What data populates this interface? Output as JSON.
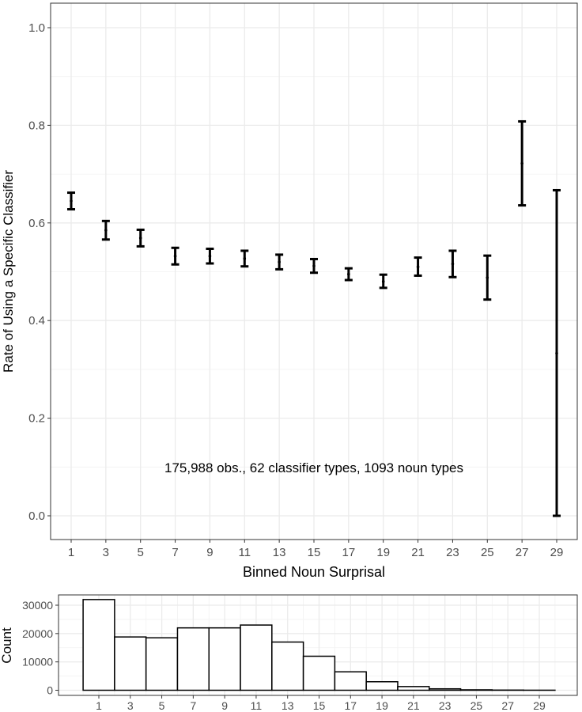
{
  "chart_data": [
    {
      "type": "scatter",
      "subtype": "errorbar",
      "xlabel": "Binned Noun Surprisal",
      "ylabel": "Rate of Using a Specific Classifier",
      "ylim": [
        0.0,
        1.0
      ],
      "xlim": [
        1,
        29
      ],
      "x_ticks": [
        1,
        3,
        5,
        7,
        9,
        11,
        13,
        15,
        17,
        19,
        21,
        23,
        25,
        27,
        29
      ],
      "y_ticks": [
        0.0,
        0.2,
        0.4,
        0.6,
        0.8,
        1.0
      ],
      "grid": true,
      "annotation": "175,988 obs., 62 classifier types, 1093 noun types",
      "points": [
        {
          "x": 1,
          "y": 0.645,
          "low": 0.628,
          "high": 0.662
        },
        {
          "x": 3,
          "y": 0.585,
          "low": 0.566,
          "high": 0.604
        },
        {
          "x": 5,
          "y": 0.569,
          "low": 0.552,
          "high": 0.586
        },
        {
          "x": 7,
          "y": 0.532,
          "low": 0.515,
          "high": 0.549
        },
        {
          "x": 9,
          "y": 0.532,
          "low": 0.517,
          "high": 0.547
        },
        {
          "x": 11,
          "y": 0.527,
          "low": 0.511,
          "high": 0.543
        },
        {
          "x": 13,
          "y": 0.52,
          "low": 0.505,
          "high": 0.535
        },
        {
          "x": 15,
          "y": 0.512,
          "low": 0.498,
          "high": 0.526
        },
        {
          "x": 17,
          "y": 0.495,
          "low": 0.483,
          "high": 0.507
        },
        {
          "x": 19,
          "y": 0.48,
          "low": 0.467,
          "high": 0.494
        },
        {
          "x": 21,
          "y": 0.51,
          "low": 0.492,
          "high": 0.529
        },
        {
          "x": 23,
          "y": 0.516,
          "low": 0.489,
          "high": 0.543
        },
        {
          "x": 25,
          "y": 0.488,
          "low": 0.443,
          "high": 0.533
        },
        {
          "x": 27,
          "y": 0.722,
          "low": 0.636,
          "high": 0.808
        },
        {
          "x": 29,
          "y": 0.333,
          "low": 0.0,
          "high": 0.667
        }
      ]
    },
    {
      "type": "bar",
      "subtype": "histogram",
      "xlabel": "",
      "ylabel": "Count",
      "ylim": [
        0,
        33000
      ],
      "y_ticks": [
        0,
        10000,
        20000,
        30000
      ],
      "x_ticks": [
        1,
        3,
        5,
        7,
        9,
        11,
        13,
        15,
        17,
        19,
        21,
        23,
        25,
        27,
        29
      ],
      "grid": true,
      "bins": [
        {
          "from": 0,
          "to": 2,
          "value": 32000
        },
        {
          "from": 2,
          "to": 4,
          "value": 18800
        },
        {
          "from": 4,
          "to": 6,
          "value": 18500
        },
        {
          "from": 6,
          "to": 8,
          "value": 22000
        },
        {
          "from": 8,
          "to": 10,
          "value": 22000
        },
        {
          "from": 10,
          "to": 12,
          "value": 23000
        },
        {
          "from": 12,
          "to": 14,
          "value": 17000
        },
        {
          "from": 14,
          "to": 16,
          "value": 12000
        },
        {
          "from": 16,
          "to": 18,
          "value": 6500
        },
        {
          "from": 18,
          "to": 20,
          "value": 3000
        },
        {
          "from": 20,
          "to": 22,
          "value": 1300
        },
        {
          "from": 22,
          "to": 24,
          "value": 500
        },
        {
          "from": 24,
          "to": 26,
          "value": 150
        },
        {
          "from": 26,
          "to": 28,
          "value": 60
        },
        {
          "from": 28,
          "to": 30,
          "value": 20
        }
      ]
    }
  ]
}
